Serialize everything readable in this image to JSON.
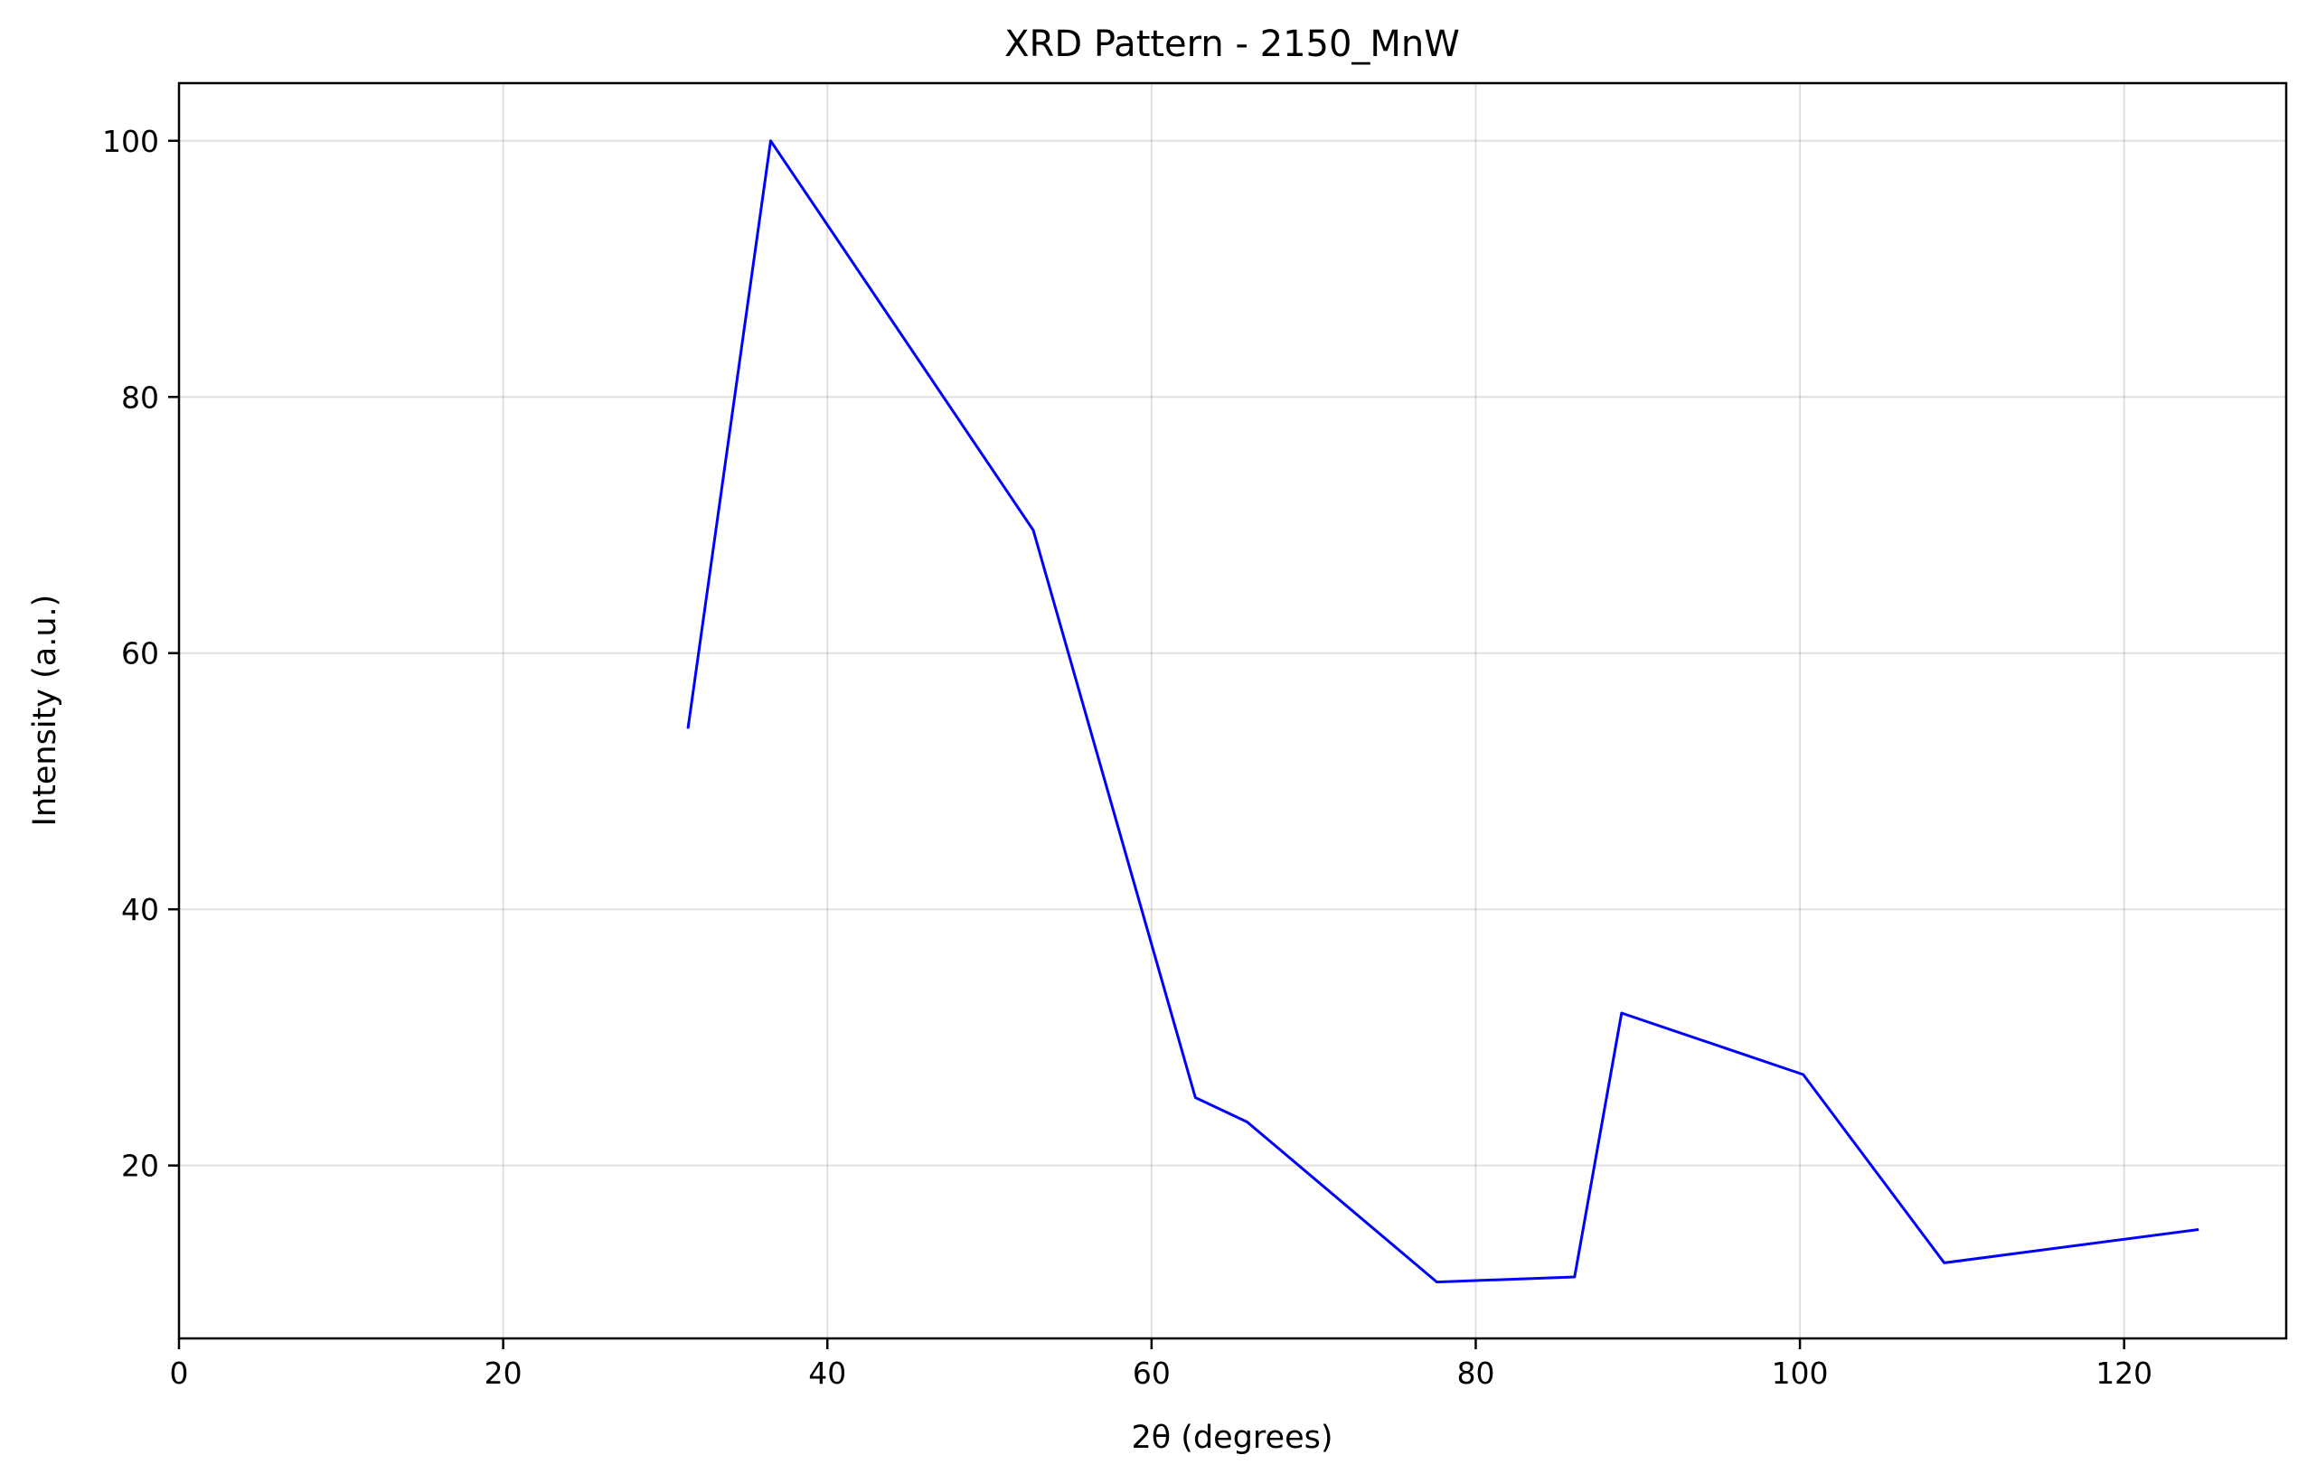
{
  "chart_data": {
    "type": "line",
    "title": "XRD Pattern - 2150_MnW",
    "xlabel": "2θ (degrees)",
    "ylabel": "Intensity (a.u.)",
    "xlim": [
      0,
      130
    ],
    "ylim": [
      6.5,
      104.5
    ],
    "xticks": [
      0,
      20,
      40,
      60,
      80,
      100,
      120
    ],
    "yticks": [
      20,
      40,
      60,
      80,
      100
    ],
    "grid": true,
    "line_color": "#0000ff",
    "series": [
      {
        "x": [
          31.4,
          36.5,
          52.7,
          62.7,
          65.9,
          77.6,
          86.1,
          89.0,
          100.2,
          108.9,
          124.6
        ],
        "y": [
          54.1,
          100.0,
          69.6,
          25.3,
          23.4,
          10.9,
          11.3,
          31.9,
          27.1,
          12.4,
          15.0
        ]
      }
    ]
  }
}
